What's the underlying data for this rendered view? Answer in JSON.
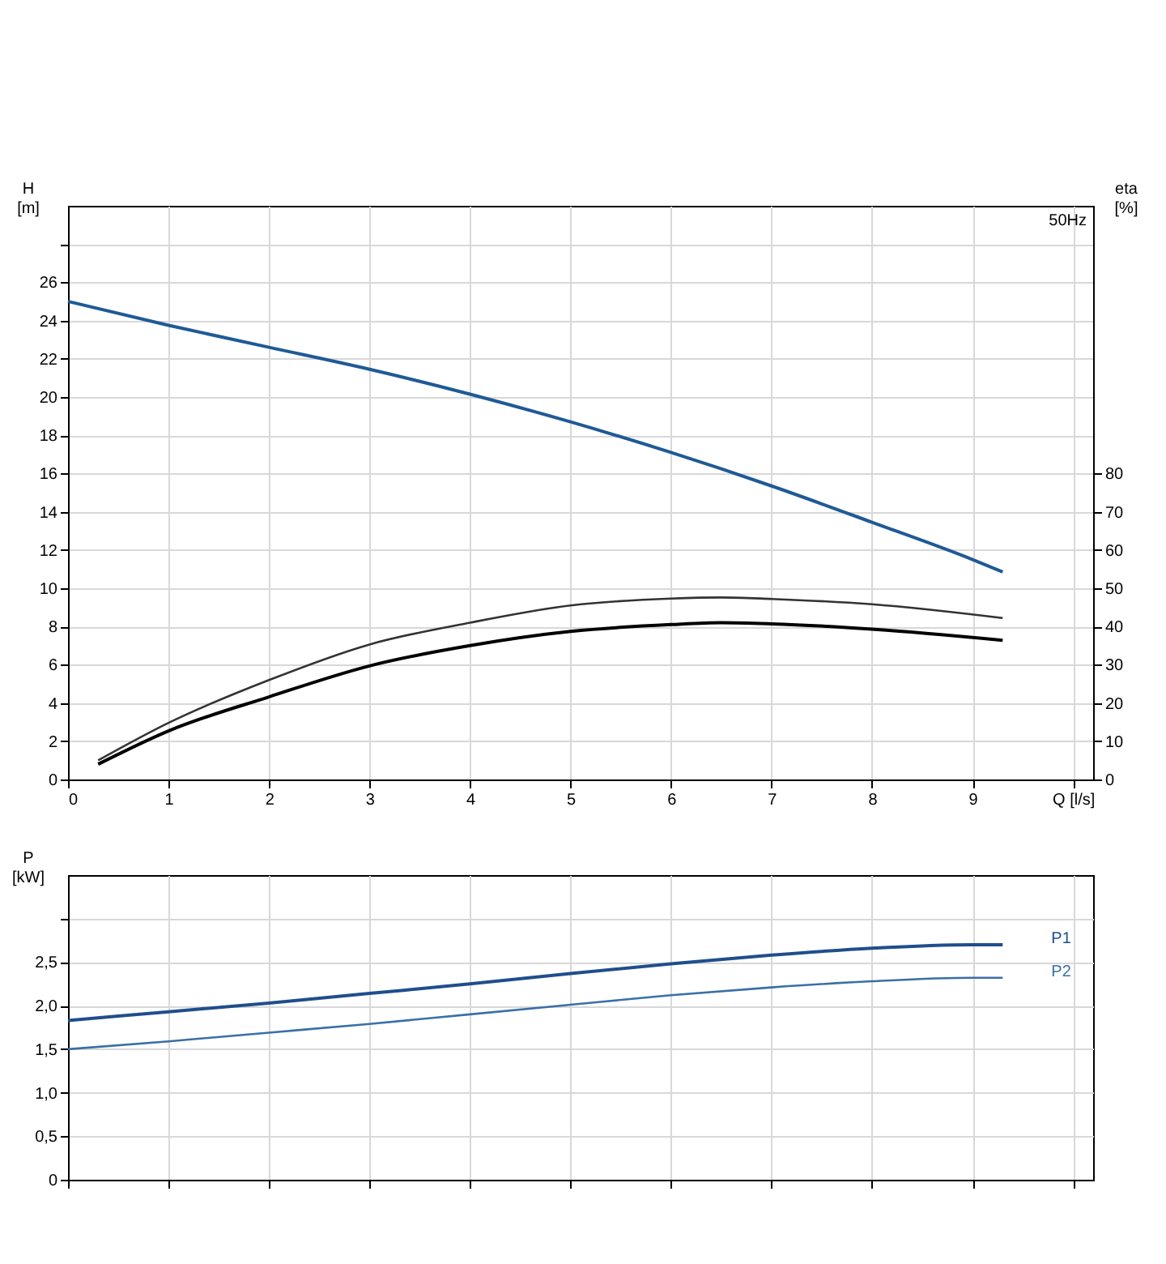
{
  "chart_data": [
    {
      "type": "line",
      "ylabel": "H [m]",
      "y2label": "eta [%]",
      "annotations": [
        "50Hz"
      ],
      "xlim": [
        0,
        10.2
      ],
      "xticks": [
        0,
        1,
        2,
        3,
        4,
        5,
        6,
        7,
        8,
        9,
        {
          "value": 10,
          "label": "Q [l/s]"
        }
      ],
      "ylim": [
        0,
        30
      ],
      "yticks": [
        0,
        2,
        4,
        6,
        8,
        10,
        12,
        14,
        16,
        18,
        20,
        22,
        24,
        26,
        {
          "value": 28,
          "label": null
        }
      ],
      "y2lim": [
        0,
        150
      ],
      "y2ticks": [
        0,
        10,
        20,
        30,
        40,
        50,
        60,
        70,
        80
      ],
      "grid": true,
      "marker": "none",
      "line_style": "solid",
      "series": [
        {
          "color": "#1f5a96",
          "x": [
            0,
            1,
            2,
            3,
            4,
            5,
            6,
            7,
            8,
            9,
            9.3
          ],
          "values": [
            25,
            23.75,
            22.6,
            21.45,
            20.15,
            18.7,
            17.1,
            15.35,
            13.45,
            11.5,
            10.85
          ]
        },
        {
          "color": "#333333",
          "axis": "y2",
          "x": [
            0.3,
            1,
            2,
            3,
            4,
            5,
            6,
            6.5,
            7,
            8,
            9.3
          ],
          "values": [
            5,
            14.8,
            26,
            35.3,
            41,
            45.5,
            47.3,
            47.6,
            47.2,
            45.8,
            42.2
          ]
        },
        {
          "color": "#000000",
          "axis": "y2",
          "x": [
            0.3,
            1,
            2,
            3,
            4,
            5,
            6,
            6.5,
            7,
            8,
            9.3
          ],
          "values": [
            4,
            12.7,
            21.6,
            29.7,
            35,
            38.7,
            40.5,
            41,
            40.7,
            39.3,
            36.4
          ]
        }
      ]
    },
    {
      "type": "line",
      "ylabel": "P [kW]",
      "xlim": [
        0,
        10.2
      ],
      "xticks": [
        0,
        1,
        2,
        3,
        4,
        5,
        6,
        7,
        8,
        9,
        10
      ],
      "ylim": [
        0,
        3.5
      ],
      "yticks": [
        0,
        {
          "value": 0.5,
          "label": "0,5"
        },
        {
          "value": 1,
          "label": "1,0"
        },
        {
          "value": 1.5,
          "label": "1,5"
        },
        {
          "value": 2,
          "label": "2,0"
        },
        {
          "value": 2.5,
          "label": "2,5"
        },
        {
          "value": 3,
          "label": null
        }
      ],
      "tick_labels": "y",
      "grid": true,
      "marker": "none",
      "line_style": "solid",
      "series": [
        {
          "name": "P1",
          "color": "#1f4e8c",
          "x": [
            0,
            1,
            2,
            3,
            4,
            5,
            6,
            7,
            8,
            9,
            9.3
          ],
          "values": [
            1.83,
            1.93,
            2.03,
            2.14,
            2.25,
            2.37,
            2.48,
            2.58,
            2.66,
            2.7,
            2.7
          ]
        },
        {
          "name": "P2",
          "color": "#3a6fa8",
          "x": [
            0,
            1,
            2,
            3,
            4,
            5,
            6,
            7,
            8,
            9,
            9.3
          ],
          "values": [
            1.5,
            1.59,
            1.69,
            1.79,
            1.9,
            2.01,
            2.12,
            2.21,
            2.28,
            2.32,
            2.32
          ]
        }
      ]
    }
  ]
}
